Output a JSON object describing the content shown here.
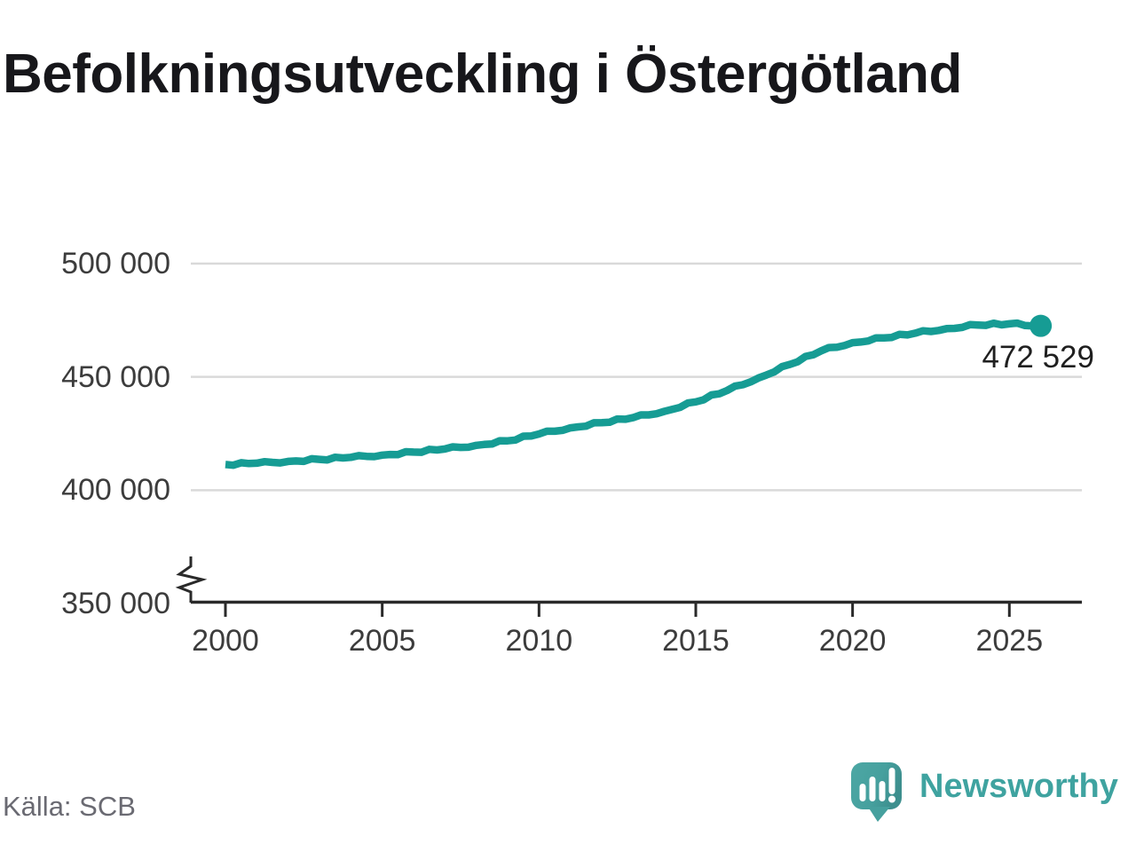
{
  "title": "Befolkningsutveckling i Östergötland",
  "source": "Källa: SCB",
  "brand": {
    "name": "Newsworthy"
  },
  "colors": {
    "line": "#169c94",
    "grid": "#d9d9d9",
    "axis": "#2a2a2a",
    "tick_text": "#3c3c3c",
    "title_text": "#17171b",
    "source_text": "#6a6a72",
    "brand_teal": "#3fa3a0"
  },
  "chart_data": {
    "type": "line",
    "title": "Befolkningsutveckling i Östergötland",
    "x": [
      2000,
      2001,
      2002,
      2003,
      2004,
      2005,
      2006,
      2007,
      2008,
      2009,
      2010,
      2011,
      2012,
      2013,
      2014,
      2015,
      2016,
      2017,
      2018,
      2019,
      2020,
      2021,
      2022,
      2023,
      2024,
      2025,
      2026
    ],
    "values": [
      411345,
      411900,
      412700,
      413600,
      414500,
      415500,
      416800,
      418200,
      419800,
      421800,
      424800,
      427500,
      429800,
      432000,
      434800,
      439000,
      444000,
      449500,
      455500,
      461500,
      465100,
      467200,
      469300,
      471300,
      472900,
      473400,
      472529
    ],
    "series_name": "Befolkning",
    "xlabel": "",
    "ylabel": "",
    "ylim": [
      350000,
      510000
    ],
    "xlim": [
      2000,
      2027.3
    ],
    "axis_break_at_bottom": true,
    "grid": "horizontal",
    "legend": "none",
    "y_ticks": [
      {
        "value": 500000,
        "label": "500 000"
      },
      {
        "value": 450000,
        "label": "450 000"
      },
      {
        "value": 400000,
        "label": "400 000"
      },
      {
        "value": 350000,
        "label": "350 000"
      }
    ],
    "x_ticks": [
      {
        "value": 2000,
        "label": "2000"
      },
      {
        "value": 2005,
        "label": "2005"
      },
      {
        "value": 2010,
        "label": "2010"
      },
      {
        "value": 2015,
        "label": "2015"
      },
      {
        "value": 2020,
        "label": "2020"
      },
      {
        "value": 2025,
        "label": "2025"
      }
    ],
    "last_point": {
      "year": 2026,
      "value": 472529,
      "label": "472 529"
    }
  }
}
